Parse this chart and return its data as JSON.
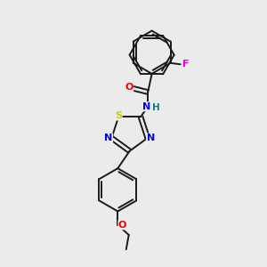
{
  "bg_color": "#ebebeb",
  "bond_color": "#1a1a1a",
  "bond_width": 1.4,
  "atom_colors": {
    "N": "#0000ee",
    "O": "#ee0000",
    "S": "#cccc00",
    "F": "#ee00ee",
    "H": "#008080"
  },
  "fontsize": 7.5,
  "figsize": [
    3.0,
    3.0
  ],
  "dpi": 100
}
